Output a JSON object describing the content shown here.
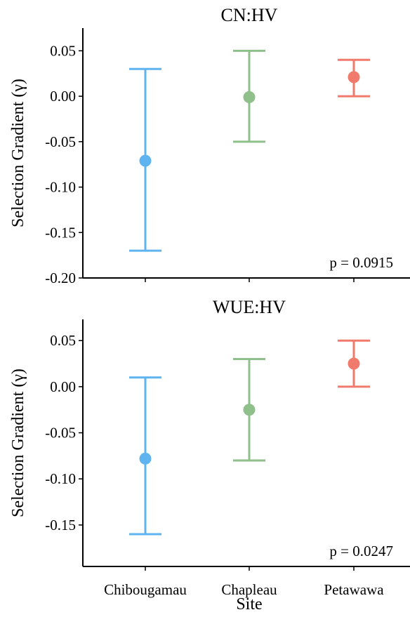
{
  "chart_data": [
    {
      "type": "scatter",
      "title": "CN:HV",
      "ylabel": "Selection Gradient (γ)",
      "xlabel": "",
      "categories": [
        "Chibougamau",
        "Chapleau",
        "Petawawa"
      ],
      "ylim": [
        -0.2,
        0.075
      ],
      "yticks": [
        "0.05",
        "0.00",
        "-0.05",
        "-0.10",
        "-0.15",
        "-0.20"
      ],
      "series": [
        {
          "values": [
            -0.071,
            -0.001,
            0.021
          ],
          "lower": [
            -0.17,
            -0.05,
            0.0
          ],
          "upper": [
            0.03,
            0.05,
            0.04
          ],
          "colors": [
            "#5fb4f0",
            "#8fbf8a",
            "#f07a6c"
          ]
        }
      ],
      "annotation": "p = 0.0915",
      "show_xtick_labels": false,
      "grid": false
    },
    {
      "type": "scatter",
      "title": "WUE:HV",
      "ylabel": "Selection Gradient (γ)",
      "xlabel": "Site",
      "categories": [
        "Chibougamau",
        "Chapleau",
        "Petawawa"
      ],
      "ylim": [
        -0.195,
        0.073
      ],
      "yticks": [
        "0.05",
        "0.00",
        "-0.05",
        "-0.10",
        "-0.15"
      ],
      "series": [
        {
          "values": [
            -0.078,
            -0.025,
            0.025
          ],
          "lower": [
            -0.16,
            -0.08,
            0.0
          ],
          "upper": [
            0.01,
            0.03,
            0.05
          ],
          "colors": [
            "#5fb4f0",
            "#8fbf8a",
            "#f07a6c"
          ]
        }
      ],
      "annotation": "p = 0.0247",
      "show_xtick_labels": true,
      "grid": false
    }
  ]
}
